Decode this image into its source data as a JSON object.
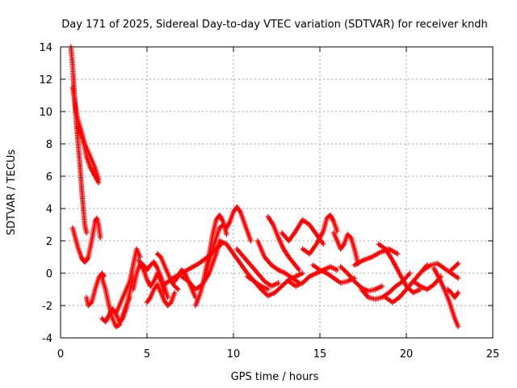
{
  "chart_data": {
    "type": "scatter",
    "title": "Day 171 of 2025, Sidereal Day-to-day VTEC variation (SDTVAR) for receiver kndh",
    "xlabel": "GPS time / hours",
    "ylabel": "SDTVAR / TECUs",
    "xlim": [
      0,
      25
    ],
    "ylim": [
      -4,
      14
    ],
    "xticks": [
      0,
      5,
      10,
      15,
      20,
      25
    ],
    "yticks": [
      -4,
      -2,
      0,
      2,
      4,
      6,
      8,
      10,
      12,
      14
    ],
    "grid": true,
    "marker": "plus",
    "color": "#ff0000",
    "series": [
      {
        "name": "t1",
        "x": [
          0.6,
          0.7,
          0.8,
          0.9,
          1.0,
          1.1,
          1.2,
          1.3,
          1.4,
          1.5
        ],
        "y": [
          14.0,
          12.8,
          11.0,
          9.5,
          8.2,
          7.0,
          5.5,
          4.2,
          3.0,
          2.5
        ]
      },
      {
        "name": "t2",
        "x": [
          0.7,
          0.8,
          0.9,
          1.0,
          1.2,
          1.4,
          1.6,
          1.8,
          2.0,
          2.2
        ],
        "y": [
          11.5,
          10.8,
          10.0,
          9.5,
          8.8,
          8.0,
          7.5,
          7.0,
          6.5,
          5.8
        ]
      },
      {
        "name": "t3",
        "x": [
          1.0,
          1.2,
          1.4,
          1.5,
          1.7,
          1.9,
          2.0,
          2.2
        ],
        "y": [
          9.0,
          8.5,
          7.8,
          7.2,
          6.6,
          6.2,
          6.0,
          5.6
        ]
      },
      {
        "name": "t4",
        "x": [
          0.7,
          0.8,
          0.9,
          1.0,
          1.1,
          1.2,
          1.3,
          1.4,
          1.5,
          1.6,
          1.7,
          1.8,
          1.9,
          2.0,
          2.1,
          2.2,
          2.3
        ],
        "y": [
          2.8,
          2.4,
          2.0,
          1.6,
          1.3,
          1.0,
          0.8,
          0.7,
          0.8,
          1.0,
          1.5,
          2.0,
          2.6,
          3.2,
          3.4,
          3.0,
          2.2
        ]
      },
      {
        "name": "t5",
        "x": [
          1.5,
          1.6,
          1.8,
          2.0,
          2.2,
          2.4,
          2.5
        ],
        "y": [
          -1.5,
          -2.0,
          -1.8,
          -1.0,
          -0.3,
          0.0,
          -0.2
        ]
      },
      {
        "name": "t6",
        "x": [
          2.4,
          2.6,
          2.8,
          3.0,
          3.2,
          3.4,
          3.6,
          3.8,
          4.0
        ],
        "y": [
          -0.3,
          -1.0,
          -2.0,
          -2.8,
          -3.3,
          -3.2,
          -2.6,
          -2.0,
          -1.5
        ]
      },
      {
        "name": "t7",
        "x": [
          2.4,
          2.6,
          2.8,
          3.0,
          3.2,
          3.4,
          3.6,
          3.8,
          4.0,
          4.2
        ],
        "y": [
          -2.8,
          -3.0,
          -2.6,
          -2.2,
          -2.5,
          -3.0,
          -2.8,
          -2.2,
          -1.2,
          -0.2
        ]
      },
      {
        "name": "t8",
        "x": [
          3.2,
          3.4,
          3.6,
          3.8,
          4.0,
          4.2,
          4.4,
          4.6
        ],
        "y": [
          -2.5,
          -2.0,
          -1.5,
          -1.0,
          -0.5,
          0.5,
          1.5,
          1.0
        ]
      },
      {
        "name": "t9",
        "x": [
          4.2,
          4.4,
          4.6,
          4.8,
          5.0,
          5.2,
          5.4,
          5.6,
          5.8,
          6.0
        ],
        "y": [
          -1.0,
          0.0,
          0.6,
          0.2,
          -0.4,
          -0.8,
          -0.5,
          0.0,
          -0.5,
          -1.2
        ]
      },
      {
        "name": "t10",
        "x": [
          4.5,
          4.8,
          5.0,
          5.2,
          5.4,
          5.6,
          5.8,
          6.0,
          6.2
        ],
        "y": [
          0.8,
          0.5,
          0.2,
          0.5,
          0.7,
          0.3,
          -0.2,
          -0.8,
          -1.5
        ]
      },
      {
        "name": "t11",
        "x": [
          5.0,
          5.2,
          5.4,
          5.6,
          5.8,
          6.0,
          6.2,
          6.4,
          6.6
        ],
        "y": [
          -1.8,
          -1.5,
          -1.0,
          -0.7,
          -1.2,
          -1.7,
          -2.0,
          -1.8,
          -1.2
        ]
      },
      {
        "name": "t12",
        "x": [
          5.6,
          5.8,
          6.0,
          6.2,
          6.4,
          6.6,
          6.8
        ],
        "y": [
          1.2,
          1.0,
          0.5,
          0.0,
          -0.5,
          -0.8,
          -1.0
        ]
      },
      {
        "name": "t13",
        "x": [
          6.6,
          6.8,
          7.0,
          7.2,
          7.4,
          7.6,
          7.8
        ],
        "y": [
          -0.5,
          -0.2,
          0.2,
          0.0,
          -0.5,
          -1.0,
          -1.5
        ]
      },
      {
        "name": "t14",
        "x": [
          6.0,
          6.5,
          7.0,
          7.5,
          8.0,
          8.5,
          9.0,
          9.3
        ],
        "y": [
          -0.7,
          -0.3,
          0.0,
          0.3,
          0.6,
          1.0,
          1.5,
          1.8
        ]
      },
      {
        "name": "t15",
        "x": [
          7.0,
          7.4,
          7.8,
          8.2,
          8.6,
          9.0,
          9.2
        ],
        "y": [
          -0.2,
          -0.5,
          -1.0,
          -0.7,
          0.0,
          1.2,
          2.0
        ]
      },
      {
        "name": "t16",
        "x": [
          7.8,
          8.0,
          8.2,
          8.4,
          8.6,
          8.8,
          9.0,
          9.2,
          9.4,
          9.6
        ],
        "y": [
          -2.0,
          -1.5,
          -0.8,
          0.2,
          1.2,
          2.4,
          3.3,
          3.6,
          3.2,
          2.4
        ]
      },
      {
        "name": "t17",
        "x": [
          8.4,
          8.6,
          8.8,
          9.0,
          9.2,
          9.4
        ],
        "y": [
          0.0,
          0.8,
          1.5,
          2.2,
          2.8,
          3.0
        ]
      },
      {
        "name": "t18",
        "x": [
          9.2,
          9.6,
          10.0,
          10.4,
          10.8,
          11.2,
          11.6,
          12.0
        ],
        "y": [
          2.0,
          1.8,
          1.2,
          0.6,
          0.0,
          -0.5,
          -0.8,
          -1.0
        ]
      },
      {
        "name": "t19",
        "x": [
          9.6,
          9.8,
          10.0,
          10.2,
          10.4,
          10.6,
          10.8,
          11.0
        ],
        "y": [
          2.8,
          3.2,
          3.8,
          4.1,
          3.8,
          3.2,
          2.6,
          2.0
        ]
      },
      {
        "name": "t20",
        "x": [
          10.2,
          10.6,
          11.0,
          11.4,
          11.8,
          12.2,
          12.6
        ],
        "y": [
          1.5,
          1.0,
          0.5,
          0.0,
          -0.5,
          -0.8,
          -0.6
        ]
      },
      {
        "name": "t21",
        "x": [
          10.8,
          11.2,
          11.6,
          12.0,
          12.4,
          12.8,
          13.2,
          13.6,
          14.0
        ],
        "y": [
          -0.2,
          -0.5,
          -1.0,
          -1.4,
          -1.2,
          -0.8,
          -0.4,
          -0.2,
          0.0
        ]
      },
      {
        "name": "t22",
        "x": [
          11.4,
          11.8,
          12.2,
          12.6,
          13.0,
          13.4,
          13.8
        ],
        "y": [
          2.0,
          1.0,
          0.5,
          0.2,
          0.0,
          -0.3,
          -0.6
        ]
      },
      {
        "name": "t23",
        "x": [
          12.0,
          12.3,
          12.6,
          12.9,
          13.2,
          13.5,
          13.8
        ],
        "y": [
          3.5,
          3.0,
          2.2,
          1.5,
          1.0,
          0.6,
          0.2
        ]
      },
      {
        "name": "t24",
        "x": [
          12.8,
          13.2,
          13.6,
          14.0,
          14.4,
          14.8,
          15.2
        ],
        "y": [
          2.5,
          2.0,
          2.6,
          3.3,
          3.0,
          2.4,
          1.8
        ]
      },
      {
        "name": "t25",
        "x": [
          13.2,
          13.6,
          14.0,
          14.4,
          14.8,
          15.2,
          15.6,
          16.0
        ],
        "y": [
          -0.5,
          -0.8,
          -0.6,
          -0.2,
          0.0,
          0.2,
          0.4,
          0.2
        ]
      },
      {
        "name": "t26",
        "x": [
          14.0,
          14.4,
          14.8,
          15.2,
          15.4,
          15.6,
          15.8,
          16.0
        ],
        "y": [
          1.5,
          1.2,
          1.8,
          2.6,
          3.4,
          3.6,
          3.2,
          2.6
        ]
      },
      {
        "name": "t27",
        "x": [
          14.6,
          15.0,
          15.4,
          15.8,
          16.2,
          16.6,
          17.0
        ],
        "y": [
          0.5,
          0.2,
          0.0,
          -0.3,
          -0.6,
          -0.5,
          -0.3
        ]
      },
      {
        "name": "t28",
        "x": [
          15.8,
          16.0,
          16.2,
          16.4,
          16.6,
          16.8,
          17.0,
          17.2
        ],
        "y": [
          2.5,
          2.0,
          1.5,
          1.8,
          2.4,
          2.2,
          1.5,
          0.6
        ]
      },
      {
        "name": "t29",
        "x": [
          16.2,
          16.6,
          17.0,
          17.4,
          17.8,
          18.2,
          18.6
        ],
        "y": [
          0.4,
          0.0,
          -0.5,
          -0.9,
          -1.1,
          -1.0,
          -0.8
        ]
      },
      {
        "name": "t30",
        "x": [
          17.4,
          17.8,
          18.2,
          18.6,
          19.0,
          19.4,
          19.8,
          20.2
        ],
        "y": [
          -1.0,
          -1.5,
          -1.6,
          -1.5,
          -1.2,
          -0.8,
          -0.5,
          0.0
        ]
      },
      {
        "name": "t31",
        "x": [
          17.0,
          17.5,
          18.0,
          18.5,
          19.0,
          19.5
        ],
        "y": [
          0.5,
          0.8,
          1.0,
          1.3,
          1.5,
          1.2
        ]
      },
      {
        "name": "t32",
        "x": [
          18.4,
          18.8,
          19.2,
          19.6,
          20.0,
          20.4,
          20.8
        ],
        "y": [
          1.8,
          1.5,
          0.8,
          0.0,
          -0.8,
          -1.2,
          -1.0
        ]
      },
      {
        "name": "t33",
        "x": [
          18.8,
          19.2,
          19.6,
          20.0,
          20.4,
          20.8,
          21.2
        ],
        "y": [
          -1.5,
          -1.8,
          -1.5,
          -1.0,
          -0.5,
          0.0,
          0.5
        ]
      },
      {
        "name": "t34",
        "x": [
          20.4,
          20.8,
          21.2,
          21.6,
          22.0
        ],
        "y": [
          -0.5,
          -0.8,
          -1.0,
          -0.7,
          -0.2
        ]
      },
      {
        "name": "t35",
        "x": [
          21.0,
          21.4,
          21.8,
          22.2,
          22.6,
          23.0
        ],
        "y": [
          0.2,
          0.5,
          0.6,
          0.3,
          0.0,
          -0.3
        ]
      },
      {
        "name": "t36",
        "x": [
          21.6,
          21.9,
          22.2,
          22.5,
          22.8,
          23.0
        ],
        "y": [
          0.3,
          -0.3,
          -1.0,
          -1.8,
          -2.8,
          -3.3
        ]
      },
      {
        "name": "t37",
        "x": [
          22.4,
          22.6,
          22.8,
          23.0
        ],
        "y": [
          -1.0,
          -1.2,
          -1.5,
          -1.2
        ]
      },
      {
        "name": "t38",
        "x": [
          22.6,
          22.8,
          23.0
        ],
        "y": [
          0.2,
          0.4,
          0.6
        ]
      }
    ]
  }
}
